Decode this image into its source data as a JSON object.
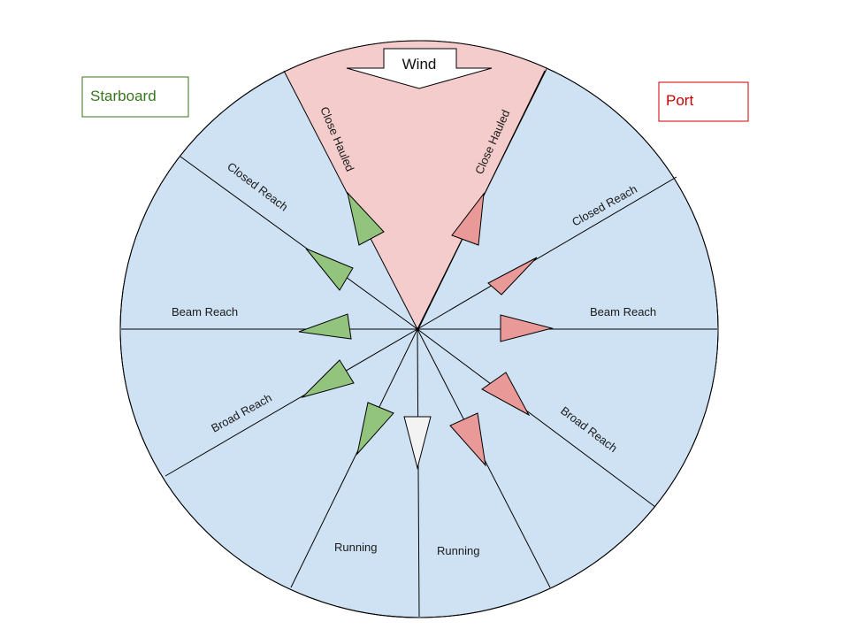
{
  "legend": {
    "starboard": "Starboard",
    "port": "Port"
  },
  "wind": {
    "label": "Wind"
  },
  "sectors": {
    "close_hauled_left": "Close Hauled",
    "close_hauled_right": "Close Hauled",
    "closed_reach_left": "Closed Reach",
    "closed_reach_right": "Closed Reach",
    "beam_reach_left": "Beam Reach",
    "beam_reach_right": "Beam Reach",
    "broad_reach_left": "Broad Reach",
    "broad_reach_right": "Broad Reach",
    "running_left": "Running",
    "running_right": "Running"
  },
  "colors": {
    "circle_fill": "#cfe2f3",
    "no_go_fill": "#f4cccc",
    "starboard": "#93c47d",
    "starboard_text": "#38761d",
    "port": "#ea9999",
    "port_text": "#cc0000",
    "downwind": "#f3f3f3",
    "line": "#000000"
  }
}
